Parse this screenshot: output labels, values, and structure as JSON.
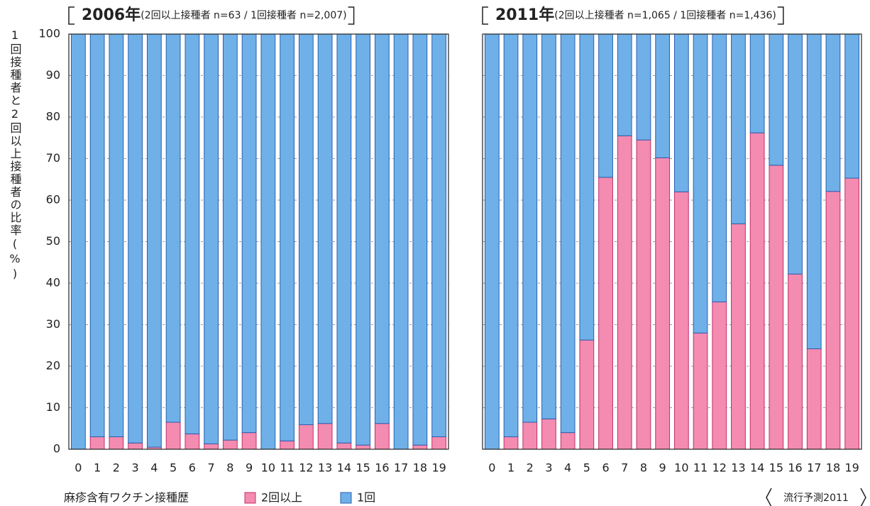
{
  "chart_data": [
    {
      "type": "stacked_bar",
      "title": "2006年",
      "subtitle": "(2回以上接種者 n=63 / 1回接種者 n=2,007)",
      "ylabel": "1回接種者と2回以上接種者の比率(%)",
      "categories": [
        "0",
        "1",
        "2",
        "3",
        "4",
        "5",
        "6",
        "7",
        "8",
        "9",
        "10",
        "11",
        "12",
        "13",
        "14",
        "15",
        "16",
        "17",
        "18",
        "19"
      ],
      "series": [
        {
          "name": "2回以上",
          "color": "#f48bb0",
          "values": [
            0,
            3,
            3,
            1.5,
            0.5,
            6.5,
            3.7,
            1.3,
            2.2,
            4,
            0,
            2,
            5.9,
            6.2,
            1.5,
            1,
            6.2,
            0,
            1,
            3
          ]
        },
        {
          "name": "1回",
          "color": "#6fb0e8",
          "values": [
            100,
            97,
            97,
            98.5,
            99.5,
            93.5,
            96.3,
            98.7,
            97.8,
            96,
            100,
            98,
            94.1,
            93.8,
            98.5,
            99,
            93.8,
            100,
            99,
            97
          ]
        }
      ],
      "ylim": [
        0,
        100
      ],
      "yticks": [
        0,
        10,
        20,
        30,
        40,
        50,
        60,
        70,
        80,
        90,
        100
      ],
      "grid": true,
      "ytick_labels": true
    },
    {
      "type": "stacked_bar",
      "title": "2011年",
      "subtitle": "(2回以上接種者 n=1,065 / 1回接種者 n=1,436)",
      "categories": [
        "0",
        "1",
        "2",
        "3",
        "4",
        "5",
        "6",
        "7",
        "8",
        "9",
        "10",
        "11",
        "12",
        "13",
        "14",
        "15",
        "16",
        "17",
        "18",
        "19"
      ],
      "series": [
        {
          "name": "2回以上",
          "color": "#f48bb0",
          "values": [
            0,
            3,
            6.5,
            7.3,
            4,
            26.3,
            65.5,
            75.5,
            74.5,
            70.2,
            62,
            28,
            35.5,
            54.3,
            76.2,
            68.4,
            42.2,
            24.2,
            62.1,
            65.3
          ]
        },
        {
          "name": "1回",
          "color": "#6fb0e8",
          "values": [
            100,
            97,
            93.5,
            92.7,
            96,
            73.7,
            34.5,
            24.5,
            25.5,
            29.8,
            38,
            72,
            64.5,
            45.7,
            23.8,
            31.6,
            57.8,
            75.8,
            37.9,
            34.7
          ]
        }
      ],
      "ylim": [
        0,
        100
      ],
      "yticks": [
        0,
        10,
        20,
        30,
        40,
        50,
        60,
        70,
        80,
        90,
        100
      ],
      "grid": true,
      "ytick_labels": false
    }
  ],
  "legend_title": "麻疹含有ワクチン接種歴",
  "source": "流行予測2011"
}
